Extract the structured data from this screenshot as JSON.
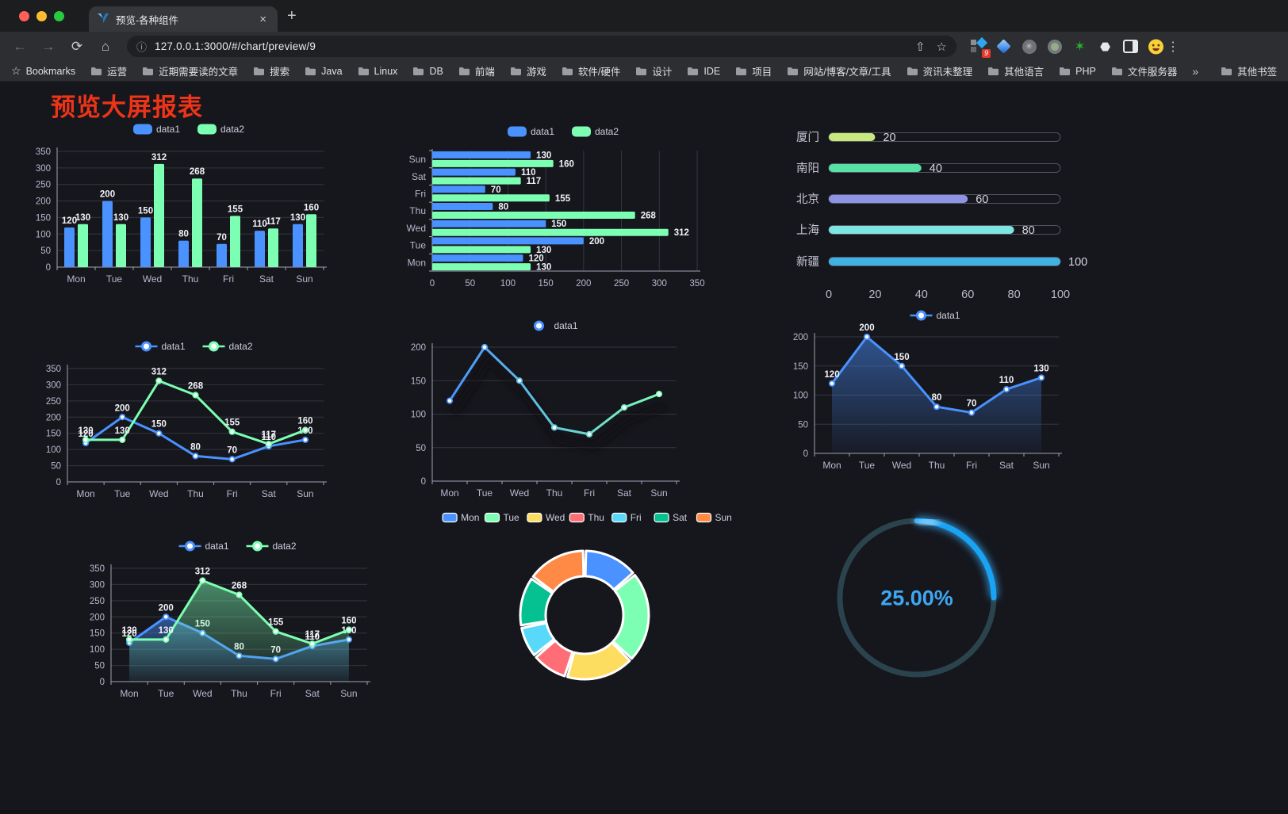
{
  "browser": {
    "window_controls": [
      "#ff5f57",
      "#febc2e",
      "#28c840"
    ],
    "tab": {
      "title": "预览-各种组件"
    },
    "icons": {
      "back": "←",
      "forward": "→",
      "reload": "⟳",
      "home": "⌂",
      "info": "ⓘ",
      "share": "⇧",
      "star": "☆",
      "menu": "⋮",
      "overflow": "»",
      "close_tab": "×",
      "new_tab": "+",
      "bookmarks_star": "☆",
      "knot": "✳",
      "green_star": "✶",
      "puzzle": "⬣"
    },
    "url": "127.0.0.1:3000/#/chart/preview/9",
    "extension_badge": "9",
    "bookmarks": [
      "Bookmarks",
      "运营",
      "近期需要读的文章",
      "搜索",
      "Java",
      "Linux",
      "DB",
      "前端",
      "游戏",
      "软件/硬件",
      "设计",
      "IDE",
      "项目",
      "网站/博客/文章/工具",
      "资讯未整理",
      "其他语言",
      "PHP",
      "文件服务器"
    ],
    "bookmarks_overflow": "»",
    "other_bookmarks": "其他书签"
  },
  "page": {
    "title": "预览大屏报表",
    "title_color": "#ee3418",
    "background": "#16161d"
  },
  "chart_data": [
    {
      "type": "bar",
      "categories": [
        "Mon",
        "Tue",
        "Wed",
        "Thu",
        "Fri",
        "Sat",
        "Sun"
      ],
      "series": [
        {
          "name": "data1",
          "color": "#4992ff",
          "values": [
            120,
            200,
            150,
            80,
            70,
            110,
            130
          ]
        },
        {
          "name": "data2",
          "color": "#7cffb2",
          "values": [
            130,
            130,
            312,
            268,
            155,
            117,
            160
          ]
        }
      ],
      "ylim": [
        0,
        350
      ],
      "ytick_step": 50,
      "grid": true,
      "legend_position": "top"
    },
    {
      "type": "hbar",
      "categories": [
        "Mon",
        "Tue",
        "Wed",
        "Thu",
        "Fri",
        "Sat",
        "Sun"
      ],
      "series": [
        {
          "name": "data1",
          "color": "#4992ff",
          "values": [
            120,
            200,
            150,
            80,
            70,
            110,
            130
          ]
        },
        {
          "name": "data2",
          "color": "#7cffb2",
          "values": [
            130,
            130,
            312,
            268,
            155,
            117,
            160
          ]
        }
      ],
      "xlim": [
        0,
        350
      ],
      "xtick_step": 50,
      "grid": true,
      "legend_position": "top"
    },
    {
      "type": "progress",
      "max": 100,
      "xticks": [
        0,
        20,
        40,
        60,
        80,
        100
      ],
      "rows": [
        {
          "label": "厦门",
          "value": 20,
          "color": "#c6e87f"
        },
        {
          "label": "南阳",
          "value": 40,
          "color": "#58e0a5"
        },
        {
          "label": "北京",
          "value": 60,
          "color": "#8f93e6"
        },
        {
          "label": "上海",
          "value": 80,
          "color": "#7ee6e2"
        },
        {
          "label": "新疆",
          "value": 100,
          "color": "#3fb1e3"
        }
      ]
    },
    {
      "type": "line",
      "categories": [
        "Mon",
        "Tue",
        "Wed",
        "Thu",
        "Fri",
        "Sat",
        "Sun"
      ],
      "series": [
        {
          "name": "data1",
          "color": "#4992ff",
          "values": [
            120,
            200,
            150,
            80,
            70,
            110,
            130
          ]
        },
        {
          "name": "data2",
          "color": "#7cffb2",
          "values": [
            130,
            130,
            312,
            268,
            155,
            117,
            160
          ]
        }
      ],
      "ylim": [
        0,
        350
      ],
      "ytick_step": 50,
      "labels": true,
      "legend_position": "top"
    },
    {
      "type": "line",
      "categories": [
        "Mon",
        "Tue",
        "Wed",
        "Thu",
        "Fri",
        "Sat",
        "Sun"
      ],
      "series": [
        {
          "name": "data1",
          "gradient": [
            "#4992ff",
            "#7cffb2"
          ],
          "values": [
            120,
            200,
            150,
            80,
            70,
            110,
            130
          ]
        }
      ],
      "ylim": [
        0,
        200
      ],
      "ytick_step": 50,
      "labels": false,
      "shadow": true,
      "legend_position": "top"
    },
    {
      "type": "line",
      "categories": [
        "Mon",
        "Tue",
        "Wed",
        "Thu",
        "Fri",
        "Sat",
        "Sun"
      ],
      "series": [
        {
          "name": "data1",
          "color": "#4992ff",
          "values": [
            120,
            200,
            150,
            80,
            70,
            110,
            130
          ],
          "area": true
        }
      ],
      "ylim": [
        0,
        200
      ],
      "ytick_step": 50,
      "labels": true,
      "legend_position": "top"
    },
    {
      "type": "line",
      "categories": [
        "Mon",
        "Tue",
        "Wed",
        "Thu",
        "Fri",
        "Sat",
        "Sun"
      ],
      "series": [
        {
          "name": "data1",
          "color": "#4992ff",
          "values": [
            120,
            200,
            150,
            80,
            70,
            110,
            130
          ],
          "area": true
        },
        {
          "name": "data2",
          "color": "#7cffb2",
          "values": [
            130,
            130,
            312,
            268,
            155,
            117,
            160
          ],
          "area": true
        }
      ],
      "ylim": [
        0,
        350
      ],
      "ytick_step": 50,
      "labels": true,
      "legend_position": "top"
    },
    {
      "type": "donut",
      "labels": [
        "Mon",
        "Tue",
        "Wed",
        "Thu",
        "Fri",
        "Sat",
        "Sun"
      ],
      "values": [
        120,
        200,
        150,
        80,
        70,
        110,
        130
      ],
      "colors": [
        "#4992ff",
        "#7cffb2",
        "#fddd60",
        "#ff6e76",
        "#58d9f9",
        "#05c091",
        "#ff8a45"
      ],
      "legend_position": "top"
    },
    {
      "type": "gauge",
      "value": 25,
      "display": "25.00%",
      "color": "#18a3f5",
      "track": "#2a434d",
      "text_color": "#3fa7f1"
    }
  ]
}
